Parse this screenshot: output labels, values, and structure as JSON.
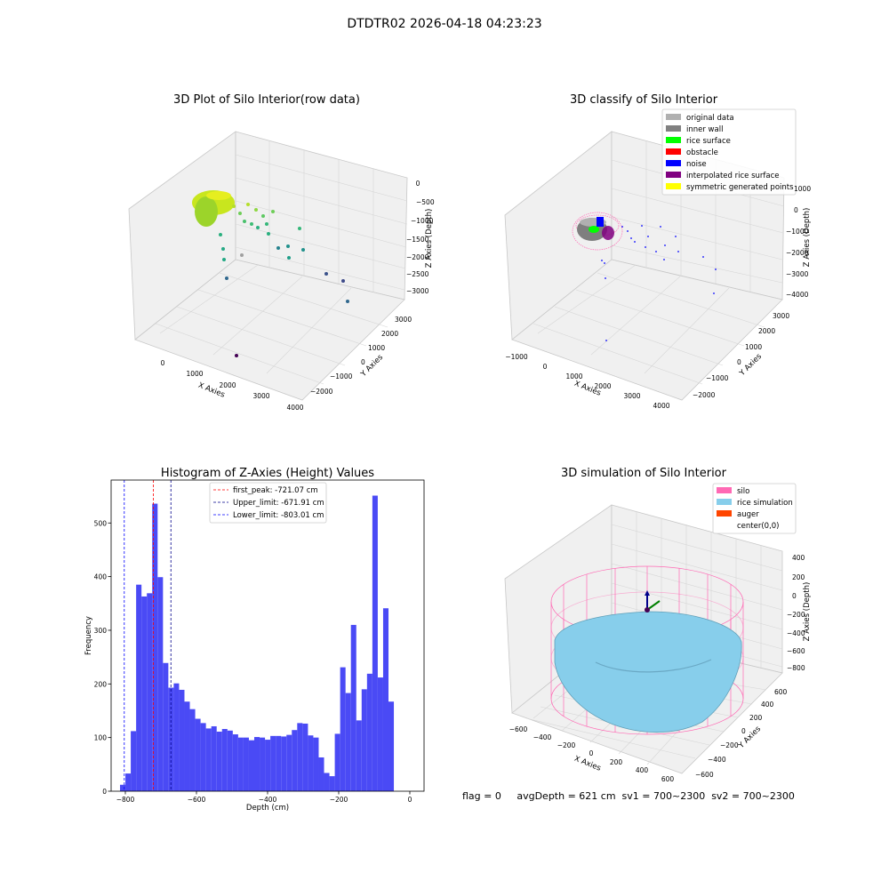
{
  "suptitle": "DTDTR02 2026-04-18 04:23:23",
  "status_text": "flag = 0     avgDepth = 621 cm  sv1 = 700~2300  sv2 = 700~2300",
  "chart_data": [
    {
      "type": "scatter",
      "title": "3D Plot of Silo Interior(row data)",
      "xlabel": "X Axies",
      "ylabel": "Y Axies",
      "zlabel": "Z Axies (Depth)",
      "x_ticks": [
        "0",
        "1000",
        "2000",
        "3000",
        "4000"
      ],
      "y_ticks": [
        "−2000",
        "−1000",
        "0",
        "1000",
        "2000",
        "3000"
      ],
      "z_ticks": [
        "0",
        "−500",
        "−1000",
        "−1500",
        "−2000",
        "−2500",
        "−3000"
      ]
    },
    {
      "type": "scatter",
      "title": "3D classify of Silo Interior",
      "xlabel": "X Axies",
      "ylabel": "Y Axies",
      "zlabel": "Z Axies (Depth)",
      "x_ticks": [
        "−1000",
        "0",
        "1000",
        "2000",
        "3000",
        "4000"
      ],
      "y_ticks": [
        "−2000",
        "−1000",
        "0",
        "1000",
        "2000",
        "3000"
      ],
      "z_ticks": [
        "1000",
        "0",
        "−1000",
        "−2000",
        "−3000",
        "−4000"
      ],
      "legend": [
        {
          "label": "original data",
          "color": "#b0b0b0"
        },
        {
          "label": "inner wall",
          "color": "#808080"
        },
        {
          "label": "rice surface",
          "color": "#00ff00"
        },
        {
          "label": "obstacle",
          "color": "#ff0000"
        },
        {
          "label": "noise",
          "color": "#0000ff"
        },
        {
          "label": "interpolated rice surface",
          "color": "#800080"
        },
        {
          "label": "symmetric generated points",
          "color": "#ffff00"
        }
      ]
    },
    {
      "type": "bar",
      "title": "Histogram of Z-Axies (Height) Values",
      "xlabel": "Depth (cm)",
      "ylabel": "Frequency",
      "xlim": [
        -840,
        40
      ],
      "ylim": [
        0,
        580
      ],
      "x_ticks": [
        {
          "v": -800,
          "t": "−800"
        },
        {
          "v": -600,
          "t": "−600"
        },
        {
          "v": -400,
          "t": "−400"
        },
        {
          "v": -200,
          "t": "−200"
        },
        {
          "v": 0,
          "t": "0"
        }
      ],
      "y_ticks": [
        {
          "v": 0,
          "t": "0"
        },
        {
          "v": 100,
          "t": "100"
        },
        {
          "v": 200,
          "t": "200"
        },
        {
          "v": 300,
          "t": "300"
        },
        {
          "v": 400,
          "t": "400"
        },
        {
          "v": 500,
          "t": "500"
        }
      ],
      "bar_color": "#4a4af5",
      "bin_start": -815,
      "bin_width": 15.1,
      "values": [
        12,
        33,
        112,
        385,
        363,
        369,
        536,
        399,
        239,
        193,
        201,
        189,
        167,
        153,
        135,
        127,
        117,
        121,
        111,
        116,
        113,
        106,
        100,
        100,
        95,
        101,
        100,
        96,
        103,
        103,
        102,
        105,
        114,
        127,
        126,
        104,
        100,
        63,
        34,
        28,
        107,
        231,
        183,
        310,
        132,
        190,
        219,
        551,
        212,
        341,
        167
      ],
      "vlines": [
        {
          "value": -721.07,
          "label": "first_peak: -721.07 cm",
          "color": "#ff0000"
        },
        {
          "value": -671.91,
          "label": "Upper_limit: -671.91 cm",
          "color": "#00008b"
        },
        {
          "value": -803.01,
          "label": "Lower_limit: -803.01 cm",
          "color": "#0000ff"
        }
      ]
    },
    {
      "type": "other",
      "title": "3D simulation of Silo Interior",
      "xlabel": "X Axies",
      "ylabel": "Y Axies",
      "zlabel": "Z Axies (Depth)",
      "x_ticks": [
        "−600",
        "−400",
        "−200",
        "0",
        "200",
        "400",
        "600"
      ],
      "y_ticks": [
        "−600",
        "−400",
        "−200",
        "0",
        "200",
        "400",
        "600"
      ],
      "z_ticks": [
        "400",
        "200",
        "0",
        "−200",
        "−400",
        "−600",
        "−800"
      ],
      "legend": [
        {
          "label": "silo",
          "color": "#ff69b4"
        },
        {
          "label": "rice simulation",
          "color": "#87ceeb"
        },
        {
          "label": "auger",
          "color": "#ff4500"
        },
        {
          "label": "center(0,0)",
          "color": "#ffffff"
        }
      ]
    }
  ]
}
